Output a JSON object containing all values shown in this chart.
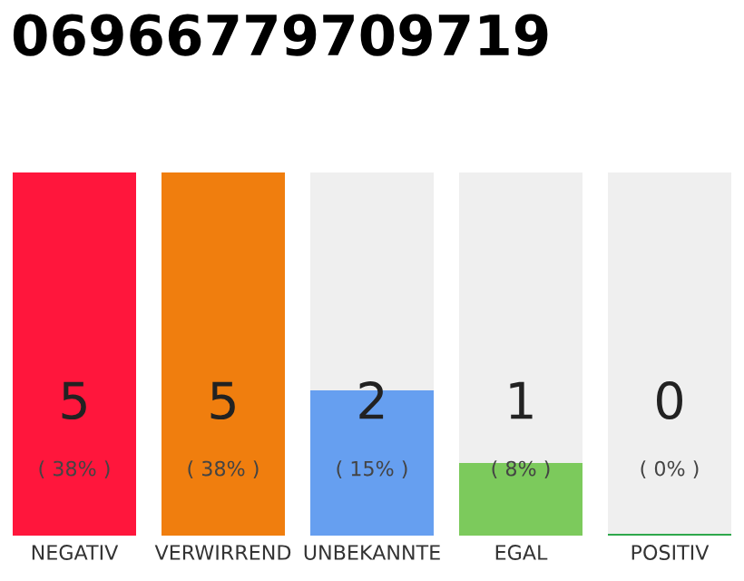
{
  "chart_data": {
    "type": "bar",
    "title": "06966779709719",
    "categories": [
      "NEGATIV",
      "VERWIRREND",
      "UNBEKANNTE",
      "EGAL",
      "POSITIV"
    ],
    "values": [
      5,
      5,
      2,
      1,
      0
    ],
    "colors": [
      "#ff163c",
      "#f07e0e",
      "#669ff0",
      "#7cca5c",
      "#2ea84c"
    ],
    "tick_labels": "x",
    "grid": false,
    "data_labels": true,
    "annotations": [
      "( 38% )",
      "( 38% )",
      "( 15% )",
      "( 8% )",
      "( 0% )"
    ]
  }
}
